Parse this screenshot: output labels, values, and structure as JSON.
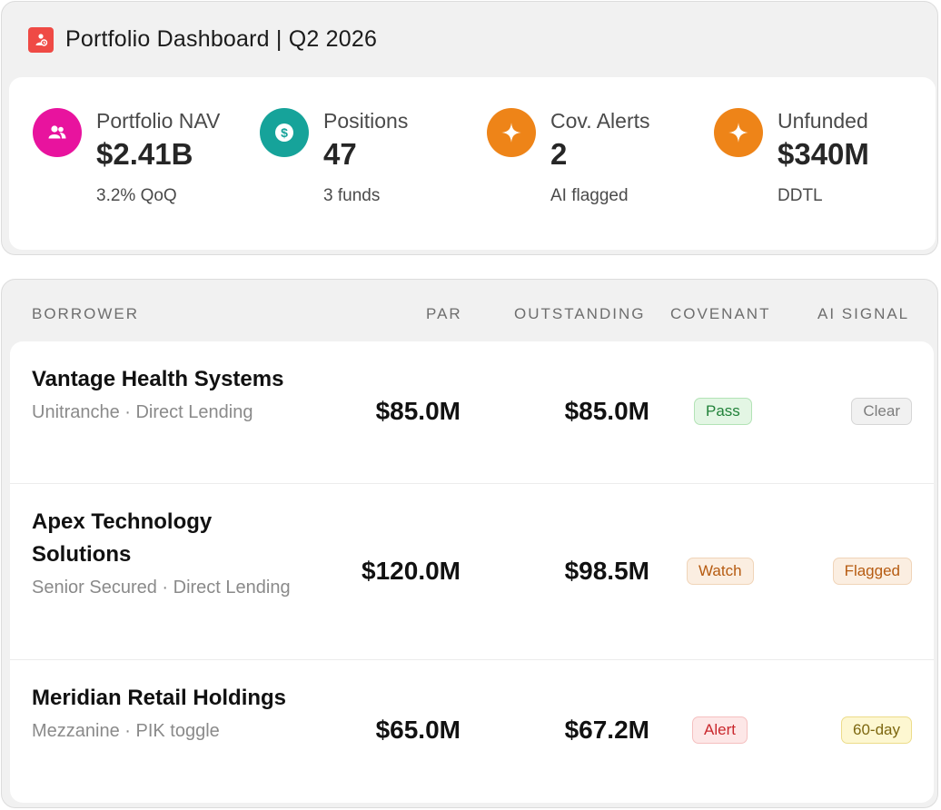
{
  "header": {
    "title": "Portfolio Dashboard | Q2 2026"
  },
  "kpis": [
    {
      "label": "Portfolio NAV",
      "value": "$2.41B",
      "sub": "3.2% QoQ",
      "icon": "users-icon",
      "color": "#e8139e"
    },
    {
      "label": "Positions",
      "value": "47",
      "sub": "3 funds",
      "icon": "dollar-icon",
      "color": "#16a39a"
    },
    {
      "label": "Cov. Alerts",
      "value": "2",
      "sub": "AI flagged",
      "icon": "sparkle-icon",
      "color": "#ee8418"
    },
    {
      "label": "Unfunded",
      "value": "$340M",
      "sub": "DDTL",
      "icon": "sparkle-icon",
      "color": "#ee8418"
    }
  ],
  "table": {
    "columns": [
      "BORROWER",
      "PAR",
      "OUTSTANDING",
      "COVENANT",
      "AI SIGNAL"
    ],
    "rows": [
      {
        "name": "Vantage Health Systems",
        "sub": "Unitranche · Direct Lending",
        "par": "$85.0M",
        "outstanding": "$85.0M",
        "covenant": "Pass",
        "signal": "Clear"
      },
      {
        "name": "Apex Technology Solutions",
        "sub": "Senior Secured · Direct Lending",
        "par": "$120.0M",
        "outstanding": "$98.5M",
        "covenant": "Watch",
        "signal": "Flagged"
      },
      {
        "name": "Meridian Retail Holdings",
        "sub": "Mezzanine · PIK toggle",
        "par": "$65.0M",
        "outstanding": "$67.2M",
        "covenant": "Alert",
        "signal": "60-day"
      }
    ]
  }
}
